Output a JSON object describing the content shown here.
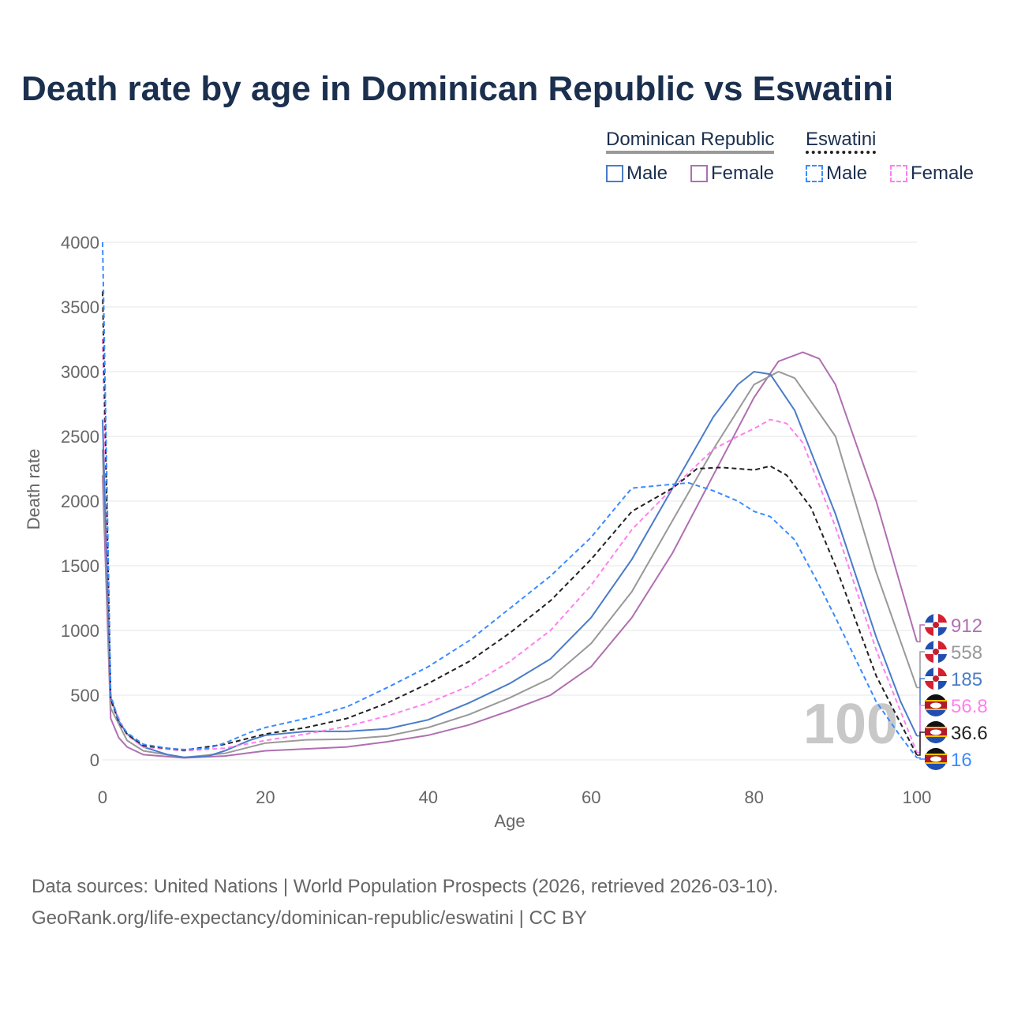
{
  "title": "Death rate by age in Dominican Republic vs Eswatini",
  "legend": {
    "group1": "Dominican Republic",
    "group2": "Eswatini",
    "male": "Male",
    "female": "Female"
  },
  "footer": {
    "line1": "Data sources: United Nations | World Population Prospects (2026, retrieved 2026-03-10).",
    "line2": "GeoRank.org/life-expectancy/dominican-republic/eswatini | CC BY"
  },
  "watermark": "100",
  "chart_data": {
    "type": "line",
    "xlabel": "Age",
    "ylabel": "Death rate",
    "xlim": [
      0,
      100
    ],
    "ylim": [
      0,
      4000
    ],
    "xticks": [
      "0",
      "20",
      "40",
      "60",
      "80",
      "100"
    ],
    "yticks": [
      "0",
      "500",
      "1000",
      "1500",
      "2000",
      "2500",
      "3000",
      "3500",
      "4000"
    ],
    "series": [
      {
        "name": "Dominican Republic Female",
        "color": "#b06fb0",
        "dash": false,
        "end_label": "912",
        "flag": "dr",
        "points": [
          [
            0,
            2200
          ],
          [
            1,
            320
          ],
          [
            2,
            170
          ],
          [
            3,
            100
          ],
          [
            5,
            40
          ],
          [
            10,
            15
          ],
          [
            15,
            30
          ],
          [
            20,
            70
          ],
          [
            25,
            85
          ],
          [
            30,
            100
          ],
          [
            35,
            140
          ],
          [
            40,
            190
          ],
          [
            45,
            270
          ],
          [
            50,
            380
          ],
          [
            55,
            500
          ],
          [
            60,
            720
          ],
          [
            65,
            1100
          ],
          [
            70,
            1600
          ],
          [
            75,
            2200
          ],
          [
            80,
            2800
          ],
          [
            83,
            3080
          ],
          [
            86,
            3150
          ],
          [
            88,
            3100
          ],
          [
            90,
            2900
          ],
          [
            95,
            2000
          ],
          [
            100,
            912
          ]
        ]
      },
      {
        "name": "Dominican Republic Total",
        "color": "#999999",
        "dash": false,
        "end_label": "558",
        "flag": "dr",
        "points": [
          [
            0,
            2400
          ],
          [
            1,
            400
          ],
          [
            3,
            150
          ],
          [
            5,
            70
          ],
          [
            10,
            18
          ],
          [
            15,
            50
          ],
          [
            20,
            130
          ],
          [
            25,
            155
          ],
          [
            30,
            160
          ],
          [
            35,
            185
          ],
          [
            40,
            250
          ],
          [
            45,
            350
          ],
          [
            50,
            480
          ],
          [
            55,
            630
          ],
          [
            60,
            900
          ],
          [
            65,
            1300
          ],
          [
            70,
            1850
          ],
          [
            75,
            2400
          ],
          [
            80,
            2900
          ],
          [
            83,
            3000
          ],
          [
            85,
            2950
          ],
          [
            90,
            2500
          ],
          [
            95,
            1450
          ],
          [
            100,
            558
          ]
        ]
      },
      {
        "name": "Dominican Republic Male",
        "color": "#4a7cc9",
        "dash": false,
        "end_label": "185",
        "flag": "dr",
        "points": [
          [
            0,
            2630
          ],
          [
            1,
            480
          ],
          [
            2,
            300
          ],
          [
            3,
            200
          ],
          [
            5,
            100
          ],
          [
            8,
            40
          ],
          [
            10,
            20
          ],
          [
            13,
            30
          ],
          [
            15,
            70
          ],
          [
            18,
            150
          ],
          [
            20,
            190
          ],
          [
            25,
            220
          ],
          [
            30,
            220
          ],
          [
            35,
            240
          ],
          [
            40,
            310
          ],
          [
            45,
            440
          ],
          [
            50,
            590
          ],
          [
            55,
            780
          ],
          [
            60,
            1100
          ],
          [
            65,
            1550
          ],
          [
            70,
            2100
          ],
          [
            75,
            2650
          ],
          [
            78,
            2900
          ],
          [
            80,
            3000
          ],
          [
            82,
            2980
          ],
          [
            85,
            2700
          ],
          [
            90,
            1900
          ],
          [
            95,
            950
          ],
          [
            98,
            450
          ],
          [
            100,
            185
          ]
        ]
      },
      {
        "name": "Eswatini Female",
        "color": "#ff80ee",
        "dash": true,
        "end_label": "56.8",
        "flag": "sz",
        "points": [
          [
            0,
            3250
          ],
          [
            1,
            450
          ],
          [
            3,
            190
          ],
          [
            5,
            100
          ],
          [
            10,
            70
          ],
          [
            15,
            90
          ],
          [
            20,
            150
          ],
          [
            25,
            200
          ],
          [
            30,
            260
          ],
          [
            35,
            340
          ],
          [
            40,
            440
          ],
          [
            45,
            570
          ],
          [
            50,
            760
          ],
          [
            55,
            1000
          ],
          [
            60,
            1350
          ],
          [
            65,
            1780
          ],
          [
            70,
            2100
          ],
          [
            75,
            2400
          ],
          [
            78,
            2500
          ],
          [
            80,
            2560
          ],
          [
            82,
            2630
          ],
          [
            84,
            2600
          ],
          [
            86,
            2450
          ],
          [
            90,
            1800
          ],
          [
            95,
            850
          ],
          [
            100,
            56.8
          ]
        ]
      },
      {
        "name": "Eswatini Total",
        "color": "#222222",
        "dash": true,
        "end_label": "36.6",
        "flag": "sz",
        "points": [
          [
            0,
            3620
          ],
          [
            1,
            470
          ],
          [
            2,
            290
          ],
          [
            3,
            200
          ],
          [
            5,
            110
          ],
          [
            10,
            75
          ],
          [
            15,
            120
          ],
          [
            20,
            200
          ],
          [
            25,
            250
          ],
          [
            30,
            320
          ],
          [
            35,
            440
          ],
          [
            40,
            590
          ],
          [
            45,
            760
          ],
          [
            50,
            980
          ],
          [
            55,
            1230
          ],
          [
            60,
            1550
          ],
          [
            65,
            1920
          ],
          [
            70,
            2100
          ],
          [
            73,
            2250
          ],
          [
            76,
            2260
          ],
          [
            80,
            2240
          ],
          [
            82,
            2270
          ],
          [
            84,
            2200
          ],
          [
            87,
            1950
          ],
          [
            90,
            1500
          ],
          [
            95,
            650
          ],
          [
            100,
            36.6
          ]
        ]
      },
      {
        "name": "Eswatini Male",
        "color": "#3b8bff",
        "dash": true,
        "end_label": "16",
        "flag": "sz",
        "points": [
          [
            0,
            4000
          ],
          [
            1,
            500
          ],
          [
            2,
            300
          ],
          [
            3,
            210
          ],
          [
            5,
            120
          ],
          [
            8,
            90
          ],
          [
            10,
            80
          ],
          [
            13,
            90
          ],
          [
            15,
            130
          ],
          [
            18,
            210
          ],
          [
            20,
            250
          ],
          [
            25,
            320
          ],
          [
            30,
            410
          ],
          [
            35,
            560
          ],
          [
            40,
            720
          ],
          [
            45,
            920
          ],
          [
            50,
            1170
          ],
          [
            55,
            1420
          ],
          [
            60,
            1720
          ],
          [
            63,
            1950
          ],
          [
            65,
            2100
          ],
          [
            70,
            2130
          ],
          [
            72,
            2140
          ],
          [
            75,
            2080
          ],
          [
            78,
            2000
          ],
          [
            80,
            1920
          ],
          [
            82,
            1880
          ],
          [
            85,
            1700
          ],
          [
            88,
            1350
          ],
          [
            90,
            1100
          ],
          [
            95,
            450
          ],
          [
            98,
            180
          ],
          [
            100,
            16
          ]
        ]
      }
    ]
  }
}
